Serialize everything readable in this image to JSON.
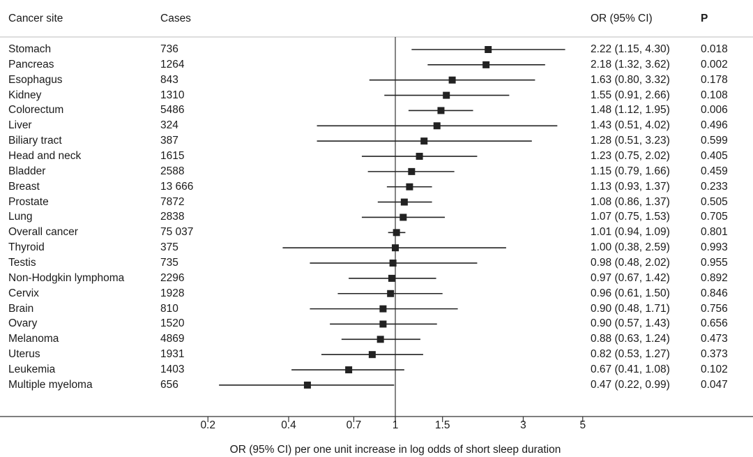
{
  "chart_data": {
    "type": "forest",
    "headers": {
      "site": "Cancer site",
      "cases": "Cases",
      "or": "OR (95% CI)",
      "p": "P"
    },
    "xlabel": "OR (95% CI) per one unit increase in log odds of short sleep duration",
    "x_scale": "log",
    "xlim": [
      0.2,
      5
    ],
    "x_ticks": [
      0.2,
      0.4,
      0.7,
      1,
      1.5,
      3,
      5
    ],
    "x_tick_labels": [
      "0.2",
      "0.4",
      "0.7",
      "1",
      "1.5",
      "3",
      "5"
    ],
    "reference_line": 1,
    "marker_color": "#222222",
    "rows": [
      {
        "site": "Stomach",
        "cases": "736",
        "or": 2.22,
        "lo": 1.15,
        "hi": 4.3,
        "label": "2.22 (1.15, 4.30)",
        "p": "0.018"
      },
      {
        "site": "Pancreas",
        "cases": "1264",
        "or": 2.18,
        "lo": 1.32,
        "hi": 3.62,
        "label": "2.18 (1.32, 3.62)",
        "p": "0.002"
      },
      {
        "site": "Esophagus",
        "cases": "843",
        "or": 1.63,
        "lo": 0.8,
        "hi": 3.32,
        "label": "1.63 (0.80, 3.32)",
        "p": "0.178"
      },
      {
        "site": "Kidney",
        "cases": "1310",
        "or": 1.55,
        "lo": 0.91,
        "hi": 2.66,
        "label": "1.55 (0.91, 2.66)",
        "p": "0.108"
      },
      {
        "site": "Colorectum",
        "cases": "5486",
        "or": 1.48,
        "lo": 1.12,
        "hi": 1.95,
        "label": "1.48 (1.12, 1.95)",
        "p": "0.006"
      },
      {
        "site": "Liver",
        "cases": "324",
        "or": 1.43,
        "lo": 0.51,
        "hi": 4.02,
        "label": "1.43 (0.51, 4.02)",
        "p": "0.496"
      },
      {
        "site": "Biliary tract",
        "cases": "387",
        "or": 1.28,
        "lo": 0.51,
        "hi": 3.23,
        "label": "1.28 (0.51, 3.23)",
        "p": "0.599"
      },
      {
        "site": "Head and neck",
        "cases": "1615",
        "or": 1.23,
        "lo": 0.75,
        "hi": 2.02,
        "label": "1.23 (0.75, 2.02)",
        "p": "0.405"
      },
      {
        "site": "Bladder",
        "cases": "2588",
        "or": 1.15,
        "lo": 0.79,
        "hi": 1.66,
        "label": "1.15 (0.79, 1.66)",
        "p": "0.459"
      },
      {
        "site": "Breast",
        "cases": "13 666",
        "or": 1.13,
        "lo": 0.93,
        "hi": 1.37,
        "label": "1.13 (0.93, 1.37)",
        "p": "0.233"
      },
      {
        "site": "Prostate",
        "cases": "7872",
        "or": 1.08,
        "lo": 0.86,
        "hi": 1.37,
        "label": "1.08 (0.86, 1.37)",
        "p": "0.505"
      },
      {
        "site": "Lung",
        "cases": "2838",
        "or": 1.07,
        "lo": 0.75,
        "hi": 1.53,
        "label": "1.07 (0.75, 1.53)",
        "p": "0.705"
      },
      {
        "site": "Overall cancer",
        "cases": "75 037",
        "or": 1.01,
        "lo": 0.94,
        "hi": 1.09,
        "label": "1.01 (0.94, 1.09)",
        "p": "0.801"
      },
      {
        "site": "Thyroid",
        "cases": "375",
        "or": 1.0,
        "lo": 0.38,
        "hi": 2.59,
        "label": "1.00 (0.38, 2.59)",
        "p": "0.993"
      },
      {
        "site": "Testis",
        "cases": "735",
        "or": 0.98,
        "lo": 0.48,
        "hi": 2.02,
        "label": "0.98 (0.48, 2.02)",
        "p": "0.955"
      },
      {
        "site": "Non-Hodgkin lymphoma",
        "cases": "2296",
        "or": 0.97,
        "lo": 0.67,
        "hi": 1.42,
        "label": "0.97 (0.67, 1.42)",
        "p": "0.892"
      },
      {
        "site": "Cervix",
        "cases": "1928",
        "or": 0.96,
        "lo": 0.61,
        "hi": 1.5,
        "label": "0.96 (0.61, 1.50)",
        "p": "0.846"
      },
      {
        "site": "Brain",
        "cases": "810",
        "or": 0.9,
        "lo": 0.48,
        "hi": 1.71,
        "label": "0.90 (0.48, 1.71)",
        "p": "0.756"
      },
      {
        "site": "Ovary",
        "cases": "1520",
        "or": 0.9,
        "lo": 0.57,
        "hi": 1.43,
        "label": "0.90 (0.57, 1.43)",
        "p": "0.656"
      },
      {
        "site": "Melanoma",
        "cases": "4869",
        "or": 0.88,
        "lo": 0.63,
        "hi": 1.24,
        "label": "0.88 (0.63, 1.24)",
        "p": "0.473"
      },
      {
        "site": "Uterus",
        "cases": "1931",
        "or": 0.82,
        "lo": 0.53,
        "hi": 1.27,
        "label": "0.82 (0.53, 1.27)",
        "p": "0.373"
      },
      {
        "site": "Leukemia",
        "cases": "1403",
        "or": 0.67,
        "lo": 0.41,
        "hi": 1.08,
        "label": "0.67 (0.41, 1.08)",
        "p": "0.102"
      },
      {
        "site": "Multiple myeloma",
        "cases": "656",
        "or": 0.47,
        "lo": 0.22,
        "hi": 0.99,
        "label": "0.47 (0.22, 0.99)",
        "p": "0.047"
      }
    ]
  }
}
